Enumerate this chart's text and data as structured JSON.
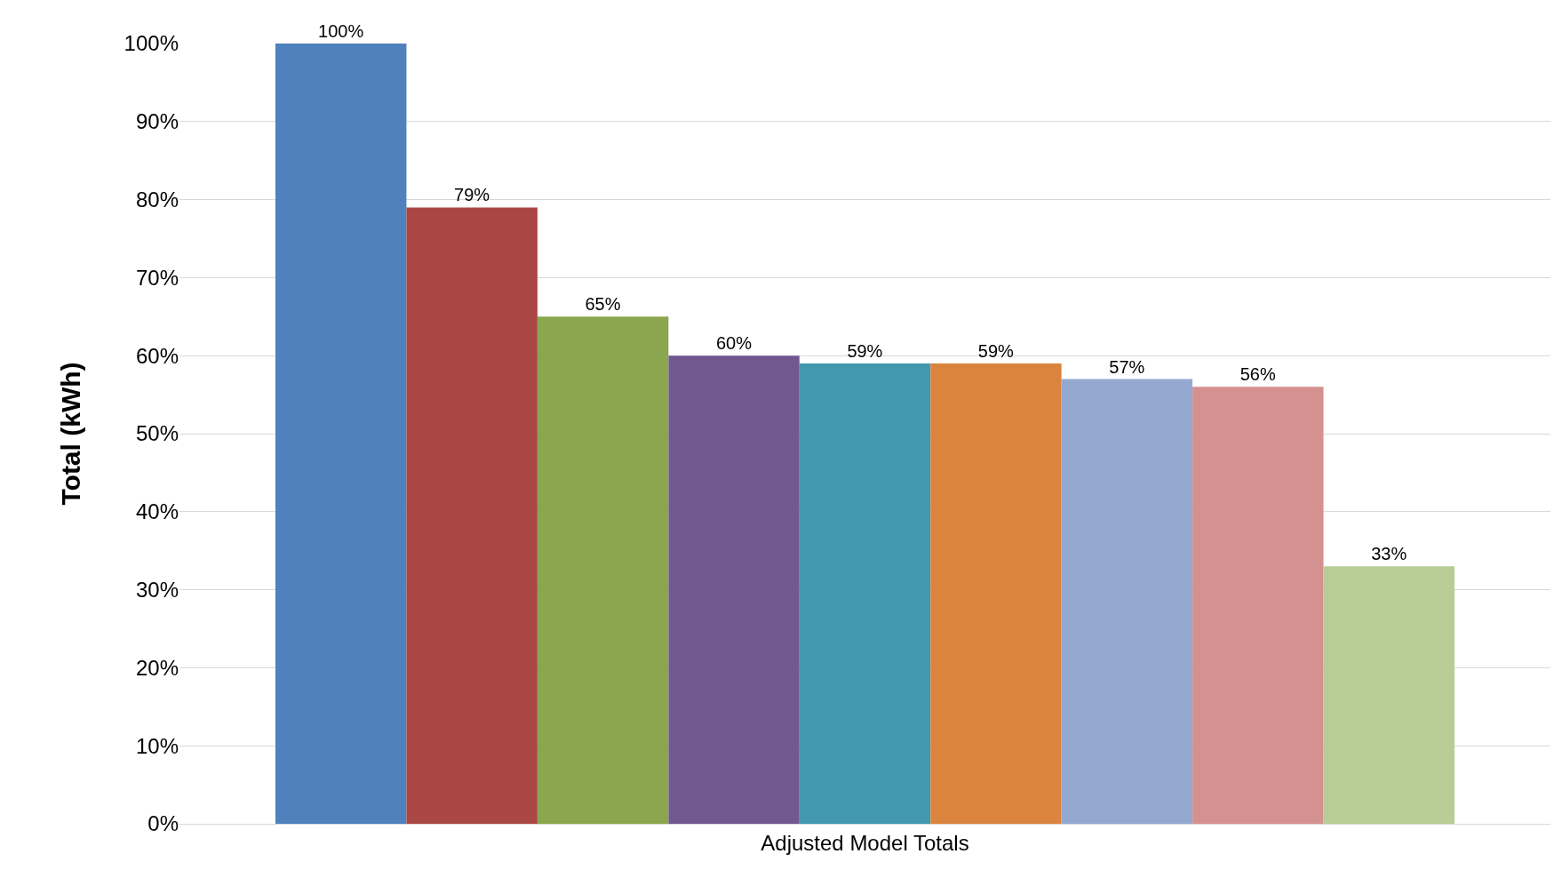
{
  "chart_data": {
    "type": "bar",
    "ylabel": "Total (kWh)",
    "categories": [
      "Adjusted Model Totals"
    ],
    "series": [
      {
        "color": "#4f81bd",
        "values": [
          100
        ],
        "value_labels": [
          "100%"
        ]
      },
      {
        "color": "#aa4644",
        "values": [
          79
        ],
        "value_labels": [
          "79%"
        ]
      },
      {
        "color": "#8aa64e",
        "values": [
          65
        ],
        "value_labels": [
          "65%"
        ]
      },
      {
        "color": "#71588f",
        "values": [
          60
        ],
        "value_labels": [
          "60%"
        ]
      },
      {
        "color": "#4298af",
        "values": [
          59
        ],
        "value_labels": [
          "59%"
        ]
      },
      {
        "color": "#db843d",
        "values": [
          59
        ],
        "value_labels": [
          "59%"
        ]
      },
      {
        "color": "#95a9d0",
        "values": [
          57
        ],
        "value_labels": [
          "57%"
        ]
      },
      {
        "color": "#d49190",
        "values": [
          56
        ],
        "value_labels": [
          "56%"
        ]
      },
      {
        "color": "#b8cd93",
        "values": [
          33
        ],
        "value_labels": [
          "33%"
        ]
      }
    ],
    "ylim": [
      0,
      100
    ],
    "yticks": [
      {
        "value": 0,
        "label": "0%"
      },
      {
        "value": 10,
        "label": "10%"
      },
      {
        "value": 20,
        "label": "20%"
      },
      {
        "value": 30,
        "label": "30%"
      },
      {
        "value": 40,
        "label": "40%"
      },
      {
        "value": 50,
        "label": "50%"
      },
      {
        "value": 60,
        "label": "60%"
      },
      {
        "value": 70,
        "label": "70%"
      },
      {
        "value": 80,
        "label": "80%"
      },
      {
        "value": 90,
        "label": "90%"
      },
      {
        "value": 100,
        "label": "100%"
      }
    ],
    "grid": "y"
  }
}
